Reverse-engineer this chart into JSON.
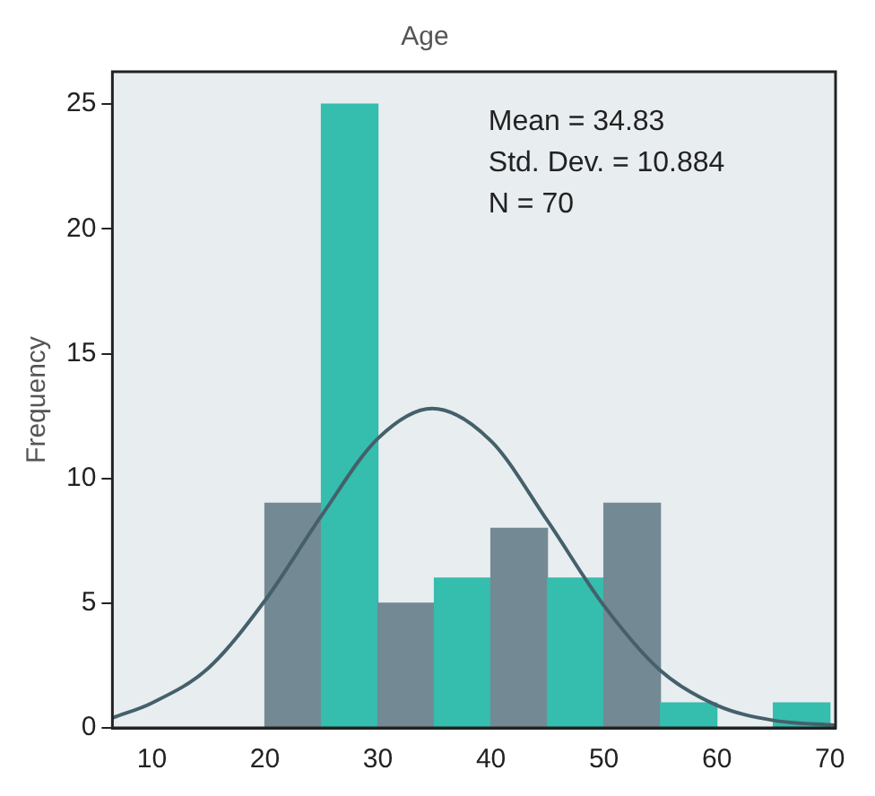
{
  "chart_data": {
    "type": "histogram",
    "title": "Age",
    "ylabel": "Frequency",
    "bins": [
      20,
      25,
      30,
      35,
      40,
      45,
      50,
      55,
      60,
      65,
      70
    ],
    "values": [
      9,
      25,
      5,
      6,
      8,
      6,
      9,
      1,
      0,
      1
    ],
    "colors": [
      "#738993",
      "#35bdae",
      "#738993",
      "#35bdae",
      "#738993",
      "#35bdae",
      "#738993",
      "#35bdae",
      "#738993",
      "#35bdae"
    ],
    "series": [
      {
        "type": "line",
        "color": "#45606b",
        "x": [
          6.5,
          10,
          15,
          20,
          25,
          30,
          34.8,
          40,
          45,
          50,
          55,
          60,
          65,
          70.5
        ],
        "values": [
          0.4,
          1.0,
          2.4,
          5.1,
          8.5,
          11.6,
          12.8,
          11.5,
          8.3,
          4.9,
          2.3,
          0.9,
          0.3,
          0.1
        ]
      }
    ],
    "xlim": [
      6.5,
      70.5
    ],
    "xticks": [
      10,
      20,
      30,
      40,
      50,
      60,
      70
    ],
    "ylim": [
      0,
      26.3
    ],
    "yticks": [
      0,
      5,
      10,
      15,
      20,
      25
    ],
    "grid": false,
    "legend": false,
    "annotations": [
      "Mean = 34.83",
      "Std. Dev. = 10.884",
      "N = 70"
    ]
  }
}
